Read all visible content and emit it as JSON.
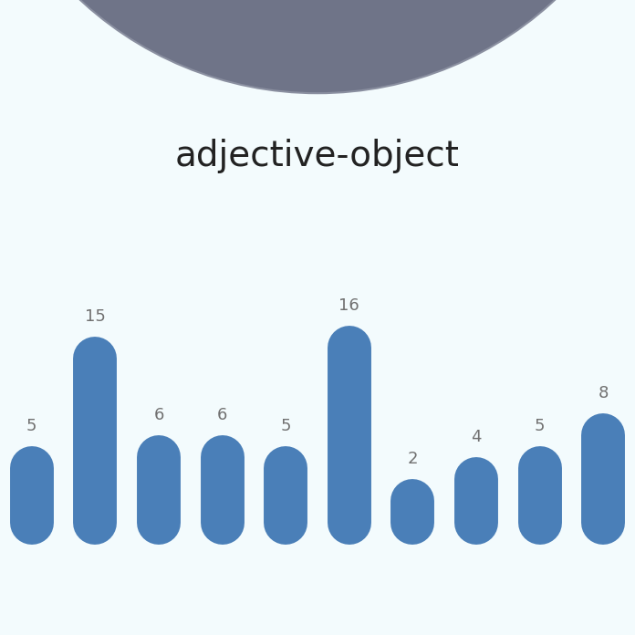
{
  "chart_data": {
    "type": "bar",
    "title": "adjective-object",
    "categories": [
      null,
      null,
      null,
      null,
      null,
      null,
      null,
      null,
      null,
      null
    ],
    "values": [
      5,
      15,
      6,
      6,
      5,
      16,
      2,
      4,
      5,
      8
    ],
    "color": "#4a7fb8",
    "data_labels": true,
    "tick_labels": false,
    "grid": false
  }
}
